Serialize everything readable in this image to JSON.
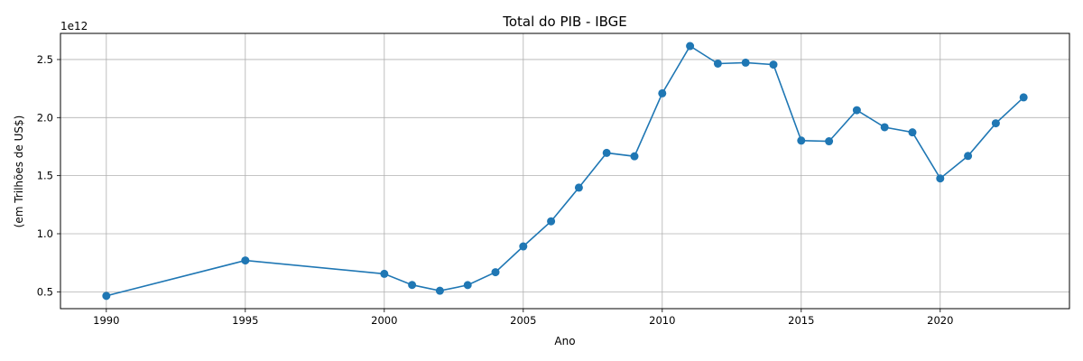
{
  "chart_data": {
    "type": "line",
    "title": "Total do PIB - IBGE",
    "xlabel": "Ano",
    "ylabel": "(em Trilhões de US$)",
    "y_offset_label": "1e12",
    "xlim": [
      1988.35,
      2024.65
    ],
    "ylim": [
      0.355,
      2.725
    ],
    "x_ticks": [
      1990,
      1995,
      2000,
      2005,
      2010,
      2015,
      2020
    ],
    "y_ticks": [
      0.5,
      1.0,
      1.5,
      2.0,
      2.5
    ],
    "y_tick_labels": [
      "0.5",
      "1.0",
      "1.5",
      "2.0",
      "2.5"
    ],
    "grid": true,
    "series": [
      {
        "color": "#1f77b4",
        "marker": "circle",
        "x": [
          1990,
          1995,
          2000,
          2001,
          2002,
          2003,
          2004,
          2005,
          2006,
          2007,
          2008,
          2009,
          2010,
          2011,
          2012,
          2013,
          2014,
          2015,
          2016,
          2017,
          2018,
          2019,
          2020,
          2021,
          2022,
          2023
        ],
        "y": [
          0.465,
          0.77,
          0.655,
          0.559,
          0.509,
          0.558,
          0.669,
          0.891,
          1.107,
          1.397,
          1.696,
          1.667,
          2.209,
          2.616,
          2.465,
          2.473,
          2.456,
          1.802,
          1.796,
          2.064,
          1.917,
          1.873,
          1.476,
          1.67,
          1.951,
          2.174
        ]
      }
    ]
  }
}
